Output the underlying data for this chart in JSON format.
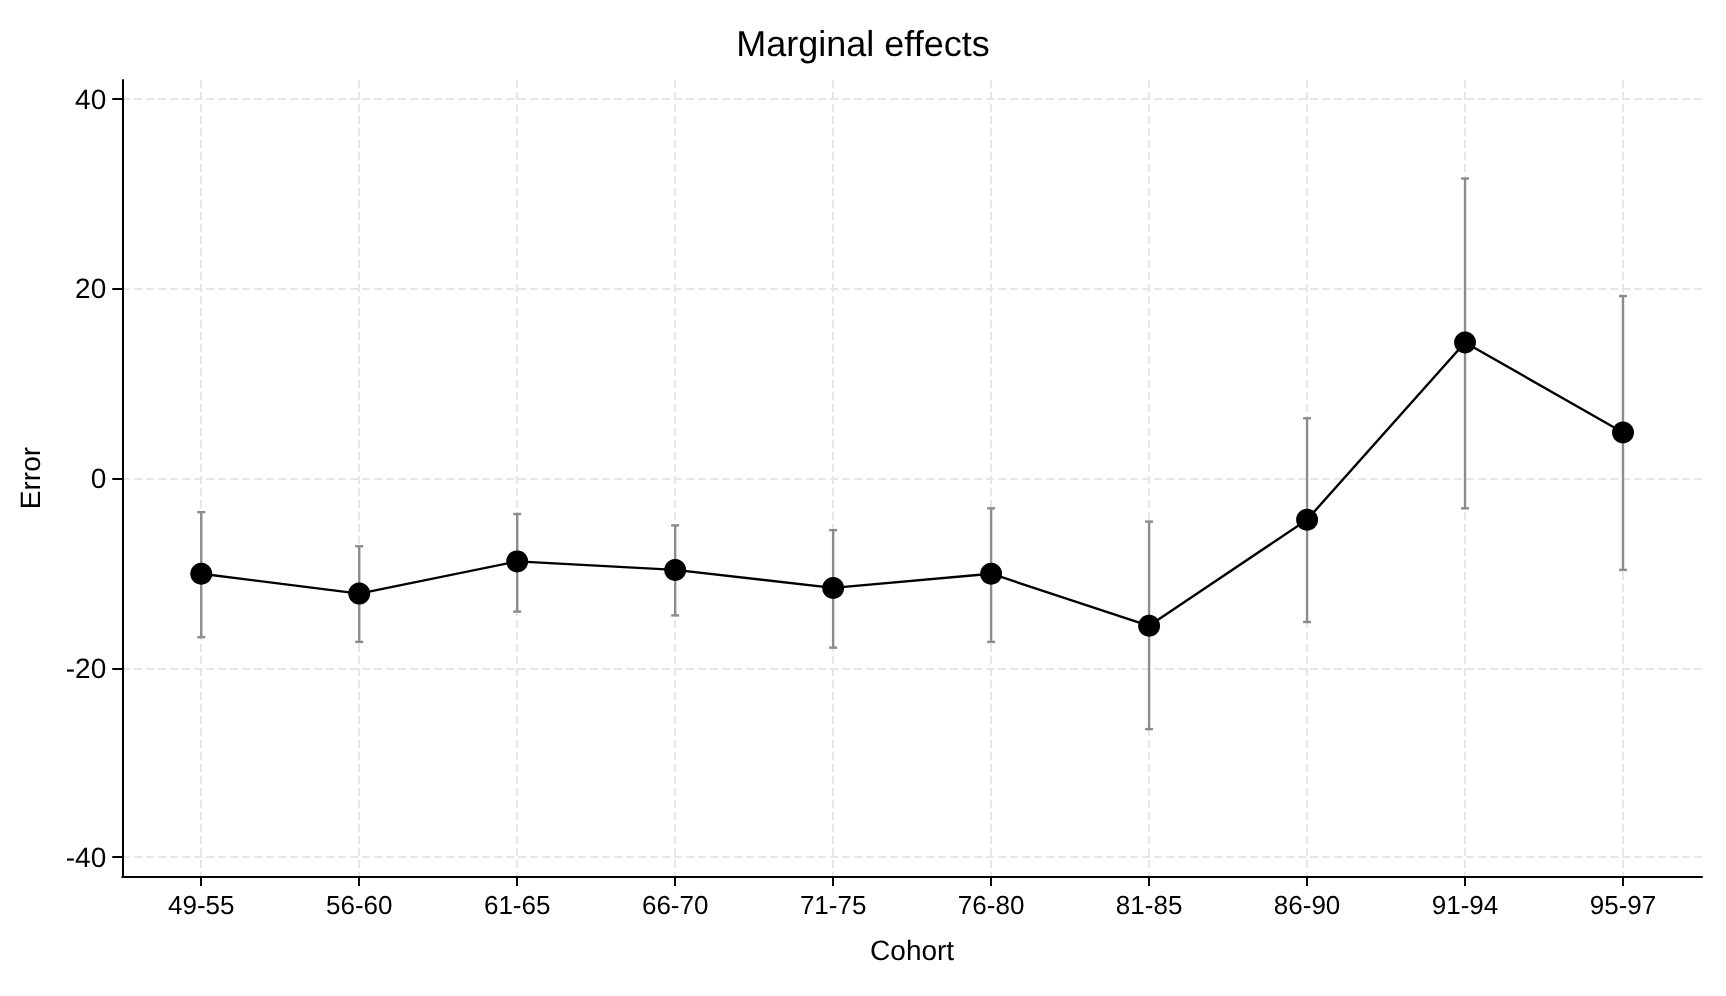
{
  "chart_data": {
    "type": "line",
    "title": "Marginal effects",
    "xlabel": "Cohort",
    "ylabel": "Error",
    "categories": [
      "49-55",
      "56-60",
      "61-65",
      "66-70",
      "71-75",
      "76-80",
      "81-85",
      "86-90",
      "91-94",
      "95-97"
    ],
    "series": [
      {
        "color": "#000000",
        "values": [
          -10.1,
          -12.2,
          -8.8,
          -9.7,
          -11.6,
          -10.1,
          -15.6,
          -4.4,
          14.3,
          4.8
        ],
        "errors": [
          [
            -16.8,
            -3.6
          ],
          [
            -17.3,
            -7.2
          ],
          [
            -14.1,
            -3.8
          ],
          [
            -14.5,
            -5
          ],
          [
            -17.9,
            -5.5
          ],
          [
            -17.3,
            -3.2
          ],
          [
            -26.5,
            -4.6
          ],
          [
            -15.2,
            6.3
          ],
          [
            -3.2,
            31.6
          ],
          [
            -9.7,
            19.2
          ]
        ]
      }
    ],
    "ylim": [
      -42,
      42
    ],
    "yticks": [
      -40,
      -20,
      0,
      20,
      40
    ],
    "grid": true,
    "marker": "circle",
    "line_style": "solid"
  }
}
